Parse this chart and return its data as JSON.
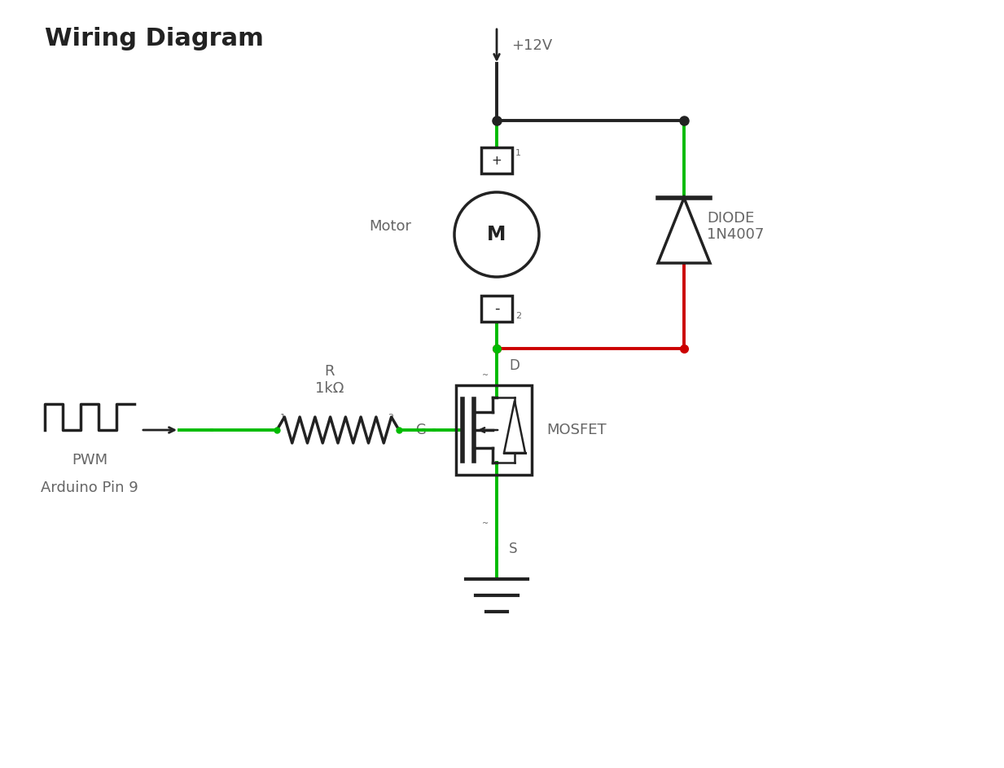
{
  "title": "Wiring Diagram",
  "title_fontsize": 22,
  "title_fontweight": "bold",
  "bg_color": "#ffffff",
  "wire_green": "#00bb00",
  "wire_red": "#cc0000",
  "wire_black": "#222222",
  "component_color": "#222222",
  "label_color": "#666666",
  "pwm_label": "PWM",
  "arduino_label": "Arduino Pin 9",
  "motor_label": "Motor",
  "diode_label": "DIODE\n1N4007",
  "mosfet_label": "MOSFET",
  "r_label": "R\n1kΩ",
  "g_label": "G",
  "d_label": "D",
  "s_label": "S",
  "v12_label": "+12V",
  "figsize": [
    12.33,
    9.43
  ],
  "dpi": 100,
  "xlim": [
    0,
    12.33
  ],
  "ylim": [
    0,
    9.43
  ]
}
